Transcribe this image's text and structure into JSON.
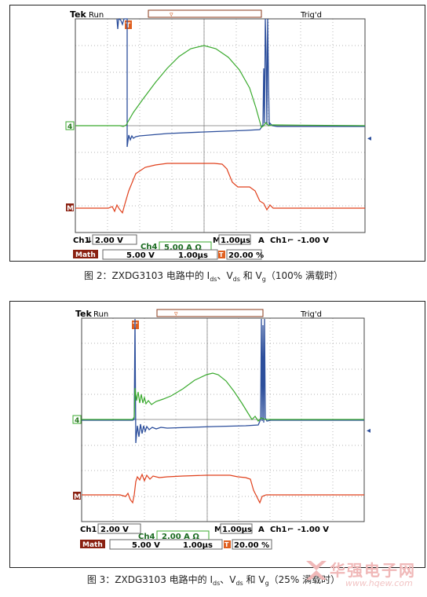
{
  "captions": [
    {
      "prefix": "图 2：ZXDG3103 电路中的 I",
      "s1": "ds",
      "mid1": "、V",
      "s2": "ds",
      "mid2": " 和 V",
      "s3": "g",
      "suffix": "（100% 满载时）"
    },
    {
      "prefix": "图 3：ZXDG3103 电路中的 I",
      "s1": "ds",
      "mid1": "、V",
      "s2": "ds",
      "mid2": " 和 V",
      "s3": "g",
      "suffix": "（25% 满载时）"
    }
  ],
  "scopes": [
    {
      "brand": "Tek",
      "run_state": "Run",
      "trig_state": "Trig'd",
      "trigger_marker": "T",
      "ch4_marker": "4",
      "math_marker": "M",
      "ch1_label": "Ch1",
      "ch1_scale": "2.00 V",
      "time_label": "M",
      "time_scale": "1.00µs",
      "trig_source_prefix": "A",
      "trig_source": "Ch1",
      "trig_level": "-1.00 V",
      "ch4_label": "Ch4",
      "ch4_scale": "5.00 A Ω",
      "math_label": "Math",
      "math_scale": "5.00 V",
      "math_time": "1.00µs",
      "trig_pos_marker": "T",
      "trig_pos": "20.00 %",
      "colors": {
        "ch1": "#2d4f9c",
        "ch4": "#3aaa2e",
        "math": "#e0401c"
      }
    },
    {
      "brand": "Tek",
      "run_state": "Run",
      "trig_state": "Trig'd",
      "trigger_marker": "T",
      "ch4_marker": "4",
      "math_marker": "M",
      "ch1_label": "Ch1",
      "ch1_scale": "2.00 V",
      "time_label": "M",
      "time_scale": "1.00µs",
      "trig_source_prefix": "A",
      "trig_source": "Ch1",
      "trig_level": "-1.00 V",
      "ch4_label": "Ch4",
      "ch4_scale": "2.00 A Ω",
      "math_label": "Math",
      "math_scale": "5.00 V",
      "math_time": "1.00µs",
      "trig_pos_marker": "T",
      "trig_pos": "20.00 %",
      "colors": {
        "ch1": "#2d4f9c",
        "ch4": "#3aaa2e",
        "math": "#e0401c"
      }
    }
  ],
  "watermark": {
    "text": "华强电子网",
    "url": "www.hqew.com"
  }
}
